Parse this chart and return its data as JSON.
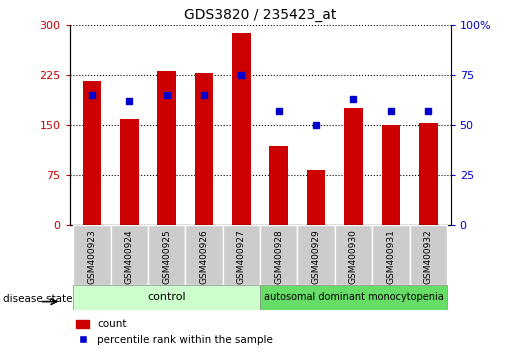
{
  "title": "GDS3820 / 235423_at",
  "samples": [
    "GSM400923",
    "GSM400924",
    "GSM400925",
    "GSM400926",
    "GSM400927",
    "GSM400928",
    "GSM400929",
    "GSM400930",
    "GSM400931",
    "GSM400932"
  ],
  "counts": [
    215,
    158,
    230,
    228,
    288,
    118,
    82,
    175,
    150,
    152
  ],
  "percentiles": [
    65,
    62,
    65,
    65,
    75,
    57,
    50,
    63,
    57,
    57
  ],
  "bar_color": "#cc0000",
  "dot_color": "#0000cc",
  "left_ylim": [
    0,
    300
  ],
  "right_ylim": [
    0,
    100
  ],
  "left_yticks": [
    0,
    75,
    150,
    225,
    300
  ],
  "right_yticks": [
    0,
    25,
    50,
    75,
    100
  ],
  "right_yticklabels": [
    "0",
    "25",
    "50",
    "75",
    "100%"
  ],
  "n_control": 5,
  "n_disease": 5,
  "control_label": "control",
  "disease_label": "autosomal dominant monocytopenia",
  "disease_state_label": "disease state",
  "legend_count_label": "count",
  "legend_pct_label": "percentile rank within the sample",
  "control_bg": "#ccffcc",
  "disease_bg": "#66dd66",
  "xlabel_bg": "#cccccc",
  "bar_width": 0.5
}
